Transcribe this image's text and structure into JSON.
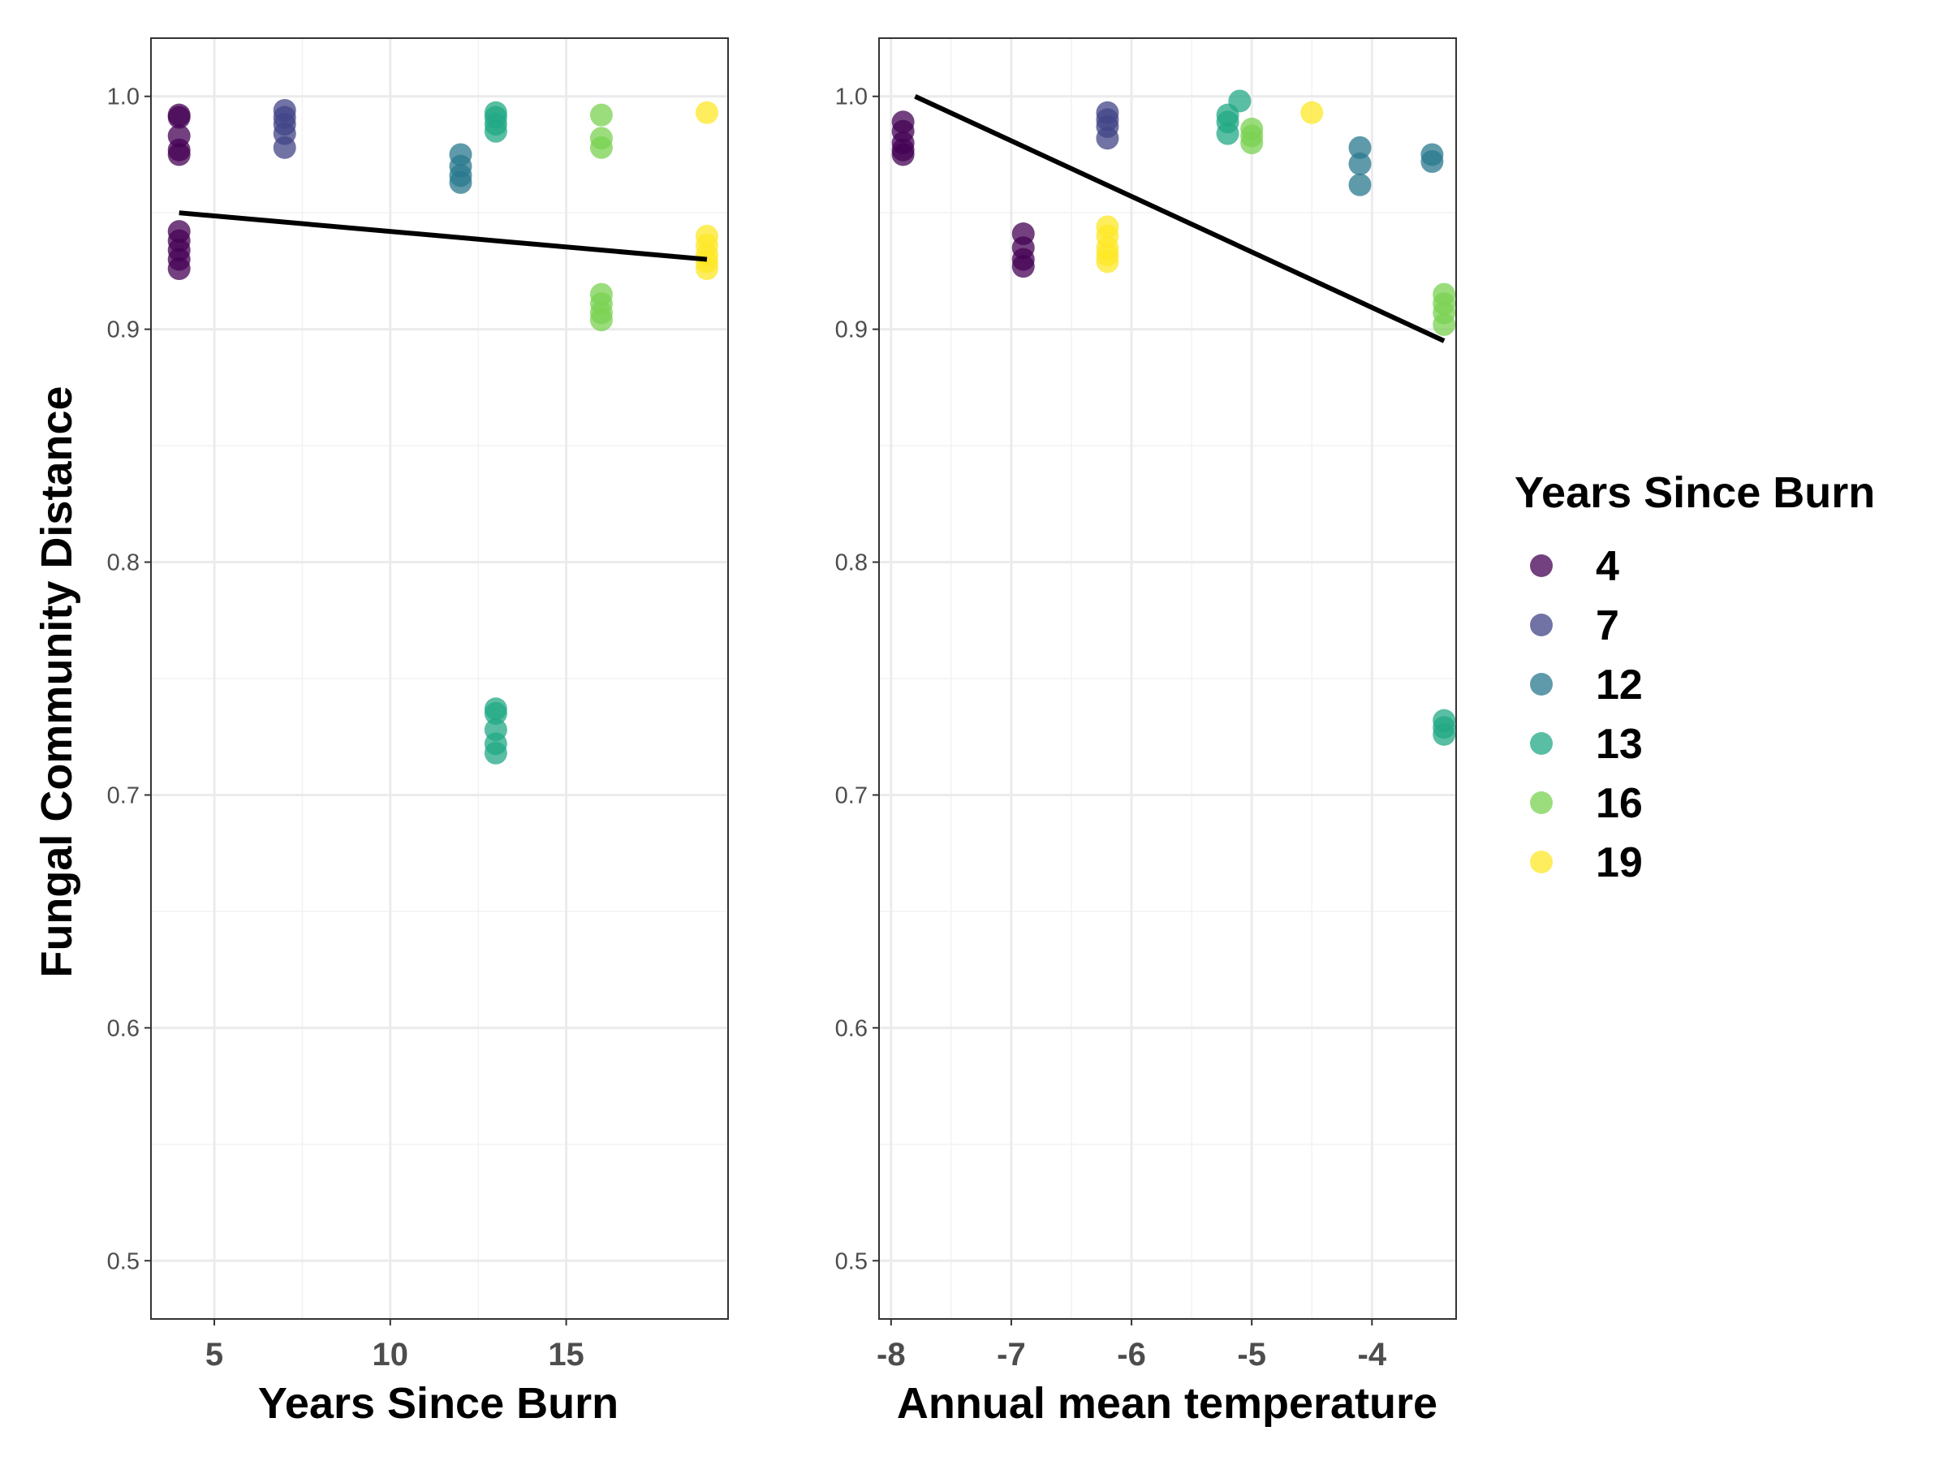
{
  "chart_data": [
    {
      "type": "scatter",
      "xlabel": "Years Since Burn",
      "ylabel": "Fungal Community Distance",
      "xlim": [
        3.2,
        19.6
      ],
      "ylim": [
        0.475,
        1.025
      ],
      "x_ticks": [
        5,
        10,
        15
      ],
      "y_ticks": [
        0.5,
        0.6,
        0.7,
        0.8,
        0.9,
        1.0
      ],
      "y_tick_labels": [
        "0.5",
        "0.6",
        "0.7",
        "0.8",
        "0.9",
        "1.0"
      ],
      "grid": true,
      "trend_line": {
        "x": [
          4,
          19
        ],
        "y": [
          0.95,
          0.93
        ]
      },
      "series": [
        {
          "name": "4",
          "color": "#440154",
          "points": [
            [
              4,
              0.992
            ],
            [
              4,
              0.991
            ],
            [
              4,
              0.983
            ],
            [
              4,
              0.977
            ],
            [
              4,
              0.975
            ],
            [
              4,
              0.942
            ],
            [
              4,
              0.938
            ],
            [
              4,
              0.934
            ],
            [
              4,
              0.93
            ],
            [
              4,
              0.926
            ]
          ]
        },
        {
          "name": "7",
          "color": "#414487",
          "points": [
            [
              7,
              0.994
            ],
            [
              7,
              0.991
            ],
            [
              7,
              0.988
            ],
            [
              7,
              0.984
            ],
            [
              7,
              0.978
            ]
          ]
        },
        {
          "name": "12",
          "color": "#2A788E",
          "points": [
            [
              12,
              0.975
            ],
            [
              12,
              0.97
            ],
            [
              12,
              0.966
            ],
            [
              12,
              0.963
            ]
          ]
        },
        {
          "name": "13",
          "color": "#22A884",
          "points": [
            [
              13,
              0.993
            ],
            [
              13,
              0.991
            ],
            [
              13,
              0.988
            ],
            [
              13,
              0.985
            ],
            [
              13,
              0.737
            ],
            [
              13,
              0.735
            ],
            [
              13,
              0.728
            ],
            [
              13,
              0.722
            ],
            [
              13,
              0.718
            ]
          ]
        },
        {
          "name": "16",
          "color": "#7AD151",
          "points": [
            [
              16,
              0.992
            ],
            [
              16,
              0.982
            ],
            [
              16,
              0.978
            ],
            [
              16,
              0.915
            ],
            [
              16,
              0.911
            ],
            [
              16,
              0.907
            ],
            [
              16,
              0.904
            ]
          ]
        },
        {
          "name": "19",
          "color": "#FDE725",
          "points": [
            [
              19,
              0.993
            ],
            [
              19,
              0.94
            ],
            [
              19,
              0.936
            ],
            [
              19,
              0.932
            ],
            [
              19,
              0.929
            ],
            [
              19,
              0.926
            ]
          ]
        }
      ]
    },
    {
      "type": "scatter",
      "xlabel": "Annual mean temperature",
      "ylabel": "",
      "xlim": [
        -8.1,
        -3.3
      ],
      "ylim": [
        0.475,
        1.025
      ],
      "x_ticks": [
        -8,
        -7,
        -6,
        -5,
        -4
      ],
      "y_ticks": [
        0.5,
        0.6,
        0.7,
        0.8,
        0.9,
        1.0
      ],
      "y_tick_labels": [
        "0.5",
        "0.6",
        "0.7",
        "0.8",
        "0.9",
        "1.0"
      ],
      "grid": true,
      "trend_line": {
        "x": [
          -7.8,
          -3.4
        ],
        "y": [
          1.0,
          0.895
        ]
      },
      "series": [
        {
          "name": "4",
          "color": "#440154",
          "points": [
            [
              -7.9,
              0.989
            ],
            [
              -7.9,
              0.985
            ],
            [
              -7.9,
              0.98
            ],
            [
              -7.9,
              0.977
            ],
            [
              -7.9,
              0.975
            ],
            [
              -6.9,
              0.941
            ],
            [
              -6.9,
              0.935
            ],
            [
              -6.9,
              0.93
            ],
            [
              -6.9,
              0.927
            ]
          ]
        },
        {
          "name": "7",
          "color": "#414487",
          "points": [
            [
              -6.2,
              0.993
            ],
            [
              -6.2,
              0.99
            ],
            [
              -6.2,
              0.987
            ],
            [
              -6.2,
              0.982
            ]
          ]
        },
        {
          "name": "12",
          "color": "#2A788E",
          "points": [
            [
              -4.1,
              0.978
            ],
            [
              -4.1,
              0.971
            ],
            [
              -4.1,
              0.962
            ],
            [
              -3.5,
              0.975
            ],
            [
              -3.5,
              0.972
            ]
          ]
        },
        {
          "name": "13",
          "color": "#22A884",
          "points": [
            [
              -5.2,
              0.992
            ],
            [
              -5.2,
              0.989
            ],
            [
              -5.2,
              0.984
            ],
            [
              -5.1,
              0.998
            ],
            [
              -3.4,
              0.732
            ],
            [
              -3.4,
              0.729
            ],
            [
              -3.4,
              0.726
            ]
          ]
        },
        {
          "name": "16",
          "color": "#7AD151",
          "points": [
            [
              -5.0,
              0.986
            ],
            [
              -5.0,
              0.983
            ],
            [
              -5.0,
              0.98
            ],
            [
              -3.4,
              0.915
            ],
            [
              -3.4,
              0.911
            ],
            [
              -3.4,
              0.907
            ],
            [
              -3.4,
              0.902
            ]
          ]
        },
        {
          "name": "19",
          "color": "#FDE725",
          "points": [
            [
              -4.5,
              0.993
            ],
            [
              -6.2,
              0.944
            ],
            [
              -6.2,
              0.94
            ],
            [
              -6.2,
              0.935
            ],
            [
              -6.2,
              0.932
            ],
            [
              -6.2,
              0.929
            ]
          ]
        }
      ]
    }
  ],
  "legend": {
    "title": "Years Since Burn",
    "placement": "right",
    "items": [
      {
        "label": "4",
        "color": "#440154"
      },
      {
        "label": "7",
        "color": "#414487"
      },
      {
        "label": "12",
        "color": "#2A788E"
      },
      {
        "label": "13",
        "color": "#22A884"
      },
      {
        "label": "16",
        "color": "#7AD151"
      },
      {
        "label": "19",
        "color": "#FDE725"
      }
    ]
  }
}
